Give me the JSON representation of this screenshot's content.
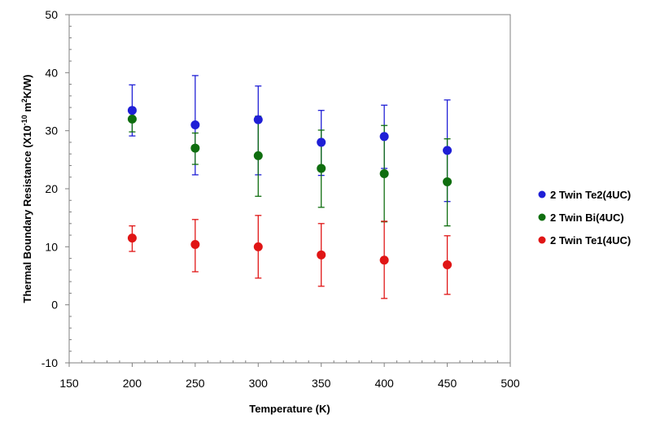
{
  "chart_data": {
    "type": "scatter",
    "xlabel": "Temperature (K)",
    "ylabel_main": "Thermal Boundary Resistance (X10",
    "ylabel_exp": "-10",
    "ylabel_unit_pre": "  m",
    "ylabel_unit_exp": "2",
    "ylabel_unit_post": "K/W)",
    "xlim": [
      150,
      500
    ],
    "ylim": [
      -10,
      50
    ],
    "xticks": [
      150,
      200,
      250,
      300,
      350,
      400,
      450,
      500
    ],
    "yticks": [
      -10,
      0,
      10,
      20,
      30,
      40,
      50
    ],
    "legend_position": "right",
    "grid": false,
    "series": [
      {
        "name": "2 Twin Te2(4UC)",
        "color": "#1f1fd6",
        "x": [
          200,
          250,
          300,
          350,
          400,
          450
        ],
        "y": [
          33.5,
          31.0,
          31.9,
          28.0,
          29.0,
          26.6
        ],
        "err_low": [
          29.1,
          22.4,
          22.4,
          22.3,
          23.5,
          17.8
        ],
        "err_high": [
          37.9,
          39.5,
          37.7,
          33.5,
          34.4,
          35.3
        ]
      },
      {
        "name": "2 Twin Bi(4UC)",
        "color": "#0f6e0f",
        "x": [
          200,
          250,
          300,
          350,
          400,
          450
        ],
        "y": [
          32.0,
          27.0,
          25.7,
          23.5,
          22.6,
          21.2
        ],
        "err_low": [
          29.8,
          24.2,
          18.7,
          16.8,
          14.3,
          13.6
        ],
        "err_high": [
          32.4,
          29.6,
          32.5,
          30.1,
          30.9,
          28.6
        ]
      },
      {
        "name": "2 Twin Te1(4UC)",
        "color": "#e01515",
        "x": [
          200,
          250,
          300,
          350,
          400,
          450
        ],
        "y": [
          11.5,
          10.4,
          10.0,
          8.6,
          7.7,
          6.9
        ],
        "err_low": [
          9.2,
          5.7,
          4.6,
          3.2,
          1.1,
          1.8
        ],
        "err_high": [
          13.6,
          14.7,
          15.4,
          14.0,
          14.4,
          11.9
        ]
      }
    ]
  }
}
